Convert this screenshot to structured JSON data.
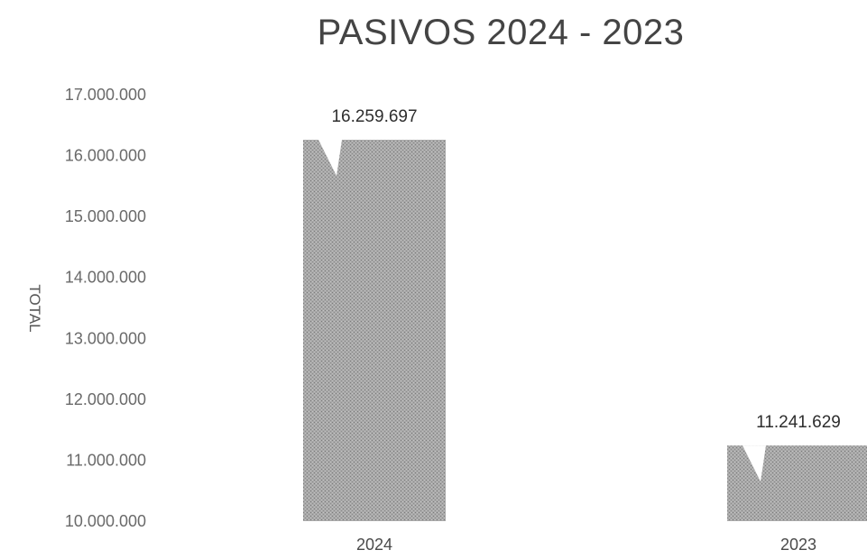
{
  "chart_data": {
    "type": "bar",
    "title": "PASIVOS 2024 - 2023",
    "ylabel": "TOTAL",
    "xlabel": "",
    "categories": [
      "2024",
      "2023"
    ],
    "values": [
      16259697,
      11241629
    ],
    "data_labels": [
      "16.259.697",
      "11.241.629"
    ],
    "ylim": [
      10000000,
      17000000
    ],
    "yticks": [
      10000000,
      11000000,
      12000000,
      13000000,
      14000000,
      15000000,
      16000000,
      17000000
    ],
    "ytick_labels": [
      "10.000.000",
      "11.000.000",
      "12.000.000",
      "13.000.000",
      "14.000.000",
      "15.000.000",
      "16.000.000",
      "17.000.000"
    ],
    "grid": false,
    "legend": "none",
    "bar_color": "#a8a8a8"
  }
}
